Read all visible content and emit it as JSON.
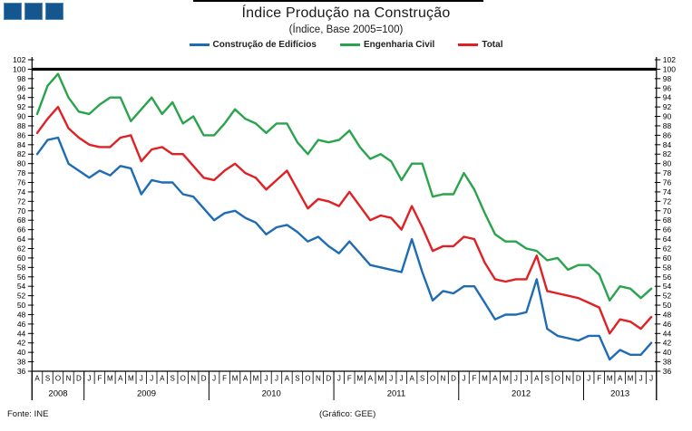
{
  "page": {
    "title": "Índice Produção na Construção",
    "subtitle": "(Índice, Base 2005=100)",
    "footer_left": "Fonte: INE",
    "footer_center": "(Gráfico: GEE)"
  },
  "logo": {
    "square_count": 3,
    "color": "#15568E"
  },
  "chart_data": {
    "type": "line",
    "title": "Índice Produção na Construção",
    "subtitle": "(Índice, Base 2005=100)",
    "ylabel": "",
    "xlabel": "",
    "ylim": [
      36,
      102
    ],
    "y_tick_step": 2,
    "baseline_value": 100,
    "grid": false,
    "legend_position": "top",
    "axis_color": "#000000",
    "baseline_color": "#000000",
    "x_years": [
      {
        "label": "2008",
        "months": [
          "A",
          "S",
          "O",
          "N",
          "D"
        ]
      },
      {
        "label": "2009",
        "months": [
          "J",
          "F",
          "M",
          "A",
          "M",
          "J",
          "J",
          "A",
          "S",
          "O",
          "N",
          "D"
        ]
      },
      {
        "label": "2010",
        "months": [
          "J",
          "F",
          "M",
          "A",
          "M",
          "J",
          "J",
          "A",
          "S",
          "O",
          "N",
          "D"
        ]
      },
      {
        "label": "2011",
        "months": [
          "J",
          "F",
          "M",
          "A",
          "M",
          "J",
          "J",
          "A",
          "S",
          "O",
          "N",
          "D"
        ]
      },
      {
        "label": "2012",
        "months": [
          "J",
          "F",
          "M",
          "A",
          "M",
          "J",
          "J",
          "A",
          "S",
          "O",
          "N",
          "D"
        ]
      },
      {
        "label": "2013",
        "months": [
          "J",
          "F",
          "M",
          "A",
          "M",
          "J",
          "J"
        ]
      }
    ],
    "series": [
      {
        "name": "Construção de Edifícios",
        "color": "#1F6CB4",
        "values": [
          82,
          85,
          85.5,
          80,
          78.5,
          77,
          78.5,
          77.5,
          79.5,
          79,
          73.5,
          76.5,
          76,
          76,
          73.5,
          73,
          70.5,
          68,
          69.5,
          70,
          68.5,
          67.5,
          65,
          66.5,
          67,
          65.5,
          63.5,
          64.5,
          62.5,
          61,
          63.5,
          61,
          58.5,
          58,
          57.5,
          57,
          64,
          57,
          51,
          53,
          52.5,
          54,
          54,
          50.5,
          47,
          48,
          48,
          48.5,
          55.5,
          45,
          43.5,
          43,
          42.5,
          43.5,
          43.5,
          38.5,
          40.5,
          39.5,
          39.5,
          42
        ]
      },
      {
        "name": "Engenharia Civil",
        "color": "#2AA44C",
        "values": [
          90.5,
          96.5,
          99,
          94,
          91,
          90.5,
          92.5,
          94,
          94,
          89,
          91.5,
          94,
          90.5,
          93,
          88.5,
          90,
          86,
          86,
          88.5,
          91.5,
          89.5,
          88.5,
          86.5,
          88.5,
          88.5,
          84.5,
          82,
          85,
          84.5,
          85,
          87,
          83.5,
          81,
          82,
          80.5,
          76.5,
          80,
          80,
          73,
          73.5,
          73.5,
          78,
          74.5,
          69.5,
          65,
          63.5,
          63.5,
          62,
          61.5,
          59.5,
          60,
          57.5,
          58.5,
          58.5,
          56.5,
          51,
          54,
          53.5,
          51.5,
          53.5
        ]
      },
      {
        "name": "Total",
        "color": "#E02024",
        "values": [
          86.5,
          89.5,
          92,
          87.5,
          85.5,
          84,
          83.5,
          83.5,
          85.5,
          86,
          80.5,
          83,
          83.5,
          82,
          82,
          79.5,
          77,
          76.5,
          78.5,
          80,
          78,
          77,
          74.5,
          76.5,
          78.5,
          74.5,
          70.5,
          72.5,
          72,
          71,
          74,
          71,
          68,
          69,
          68.5,
          66,
          71,
          66.5,
          61.5,
          62.5,
          62.5,
          64.5,
          64,
          59,
          55.5,
          55,
          55.5,
          55.5,
          60.5,
          53,
          52.5,
          52,
          51.5,
          50.5,
          49.5,
          44,
          47,
          46.5,
          45,
          47.5
        ]
      }
    ]
  }
}
